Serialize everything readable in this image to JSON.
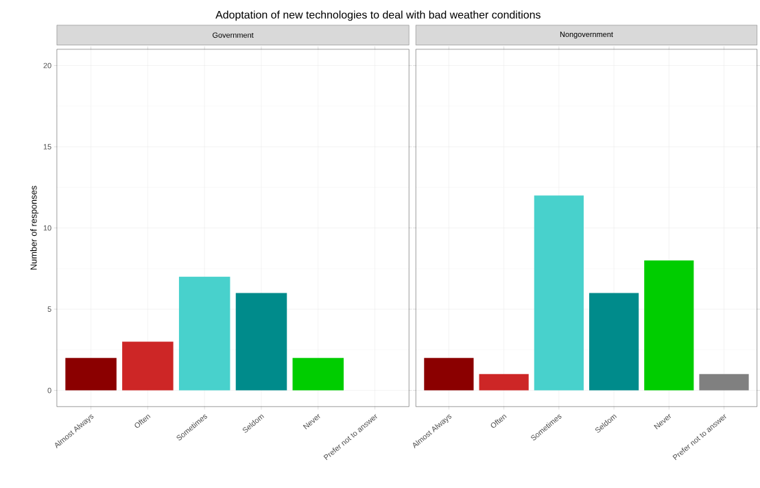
{
  "chart_data": [
    {
      "type": "bar",
      "title": "Adoptation of new technologies to deal with bad weather conditions",
      "subtitle": "Government",
      "ylabel": "Number of responses",
      "categories": [
        "Almost Always",
        "Often",
        "Sometimes",
        "Seldom",
        "Never",
        "Prefer not to answer"
      ],
      "values": [
        2,
        3,
        7,
        6,
        2,
        0
      ],
      "colors": [
        "#8b0000",
        "#cd2626",
        "#48d1cc",
        "#008b8b",
        "#00cd00",
        "#808080"
      ],
      "ylim": [
        -1,
        21
      ],
      "yticks": [
        0,
        5,
        10,
        15,
        20
      ],
      "grid": true
    },
    {
      "type": "bar",
      "subtitle": "Nongovernment",
      "categories": [
        "Almost Always",
        "Often",
        "Sometimes",
        "Seldom",
        "Never",
        "Prefer not to answer"
      ],
      "values": [
        2,
        1,
        12,
        6,
        8,
        1
      ],
      "colors": [
        "#8b0000",
        "#cd2626",
        "#48d1cc",
        "#008b8b",
        "#00cd00",
        "#808080"
      ],
      "ylim": [
        -1,
        21
      ],
      "yticks": [
        0,
        5,
        10,
        15,
        20
      ],
      "grid": true,
      "tick_labels": "x"
    }
  ]
}
